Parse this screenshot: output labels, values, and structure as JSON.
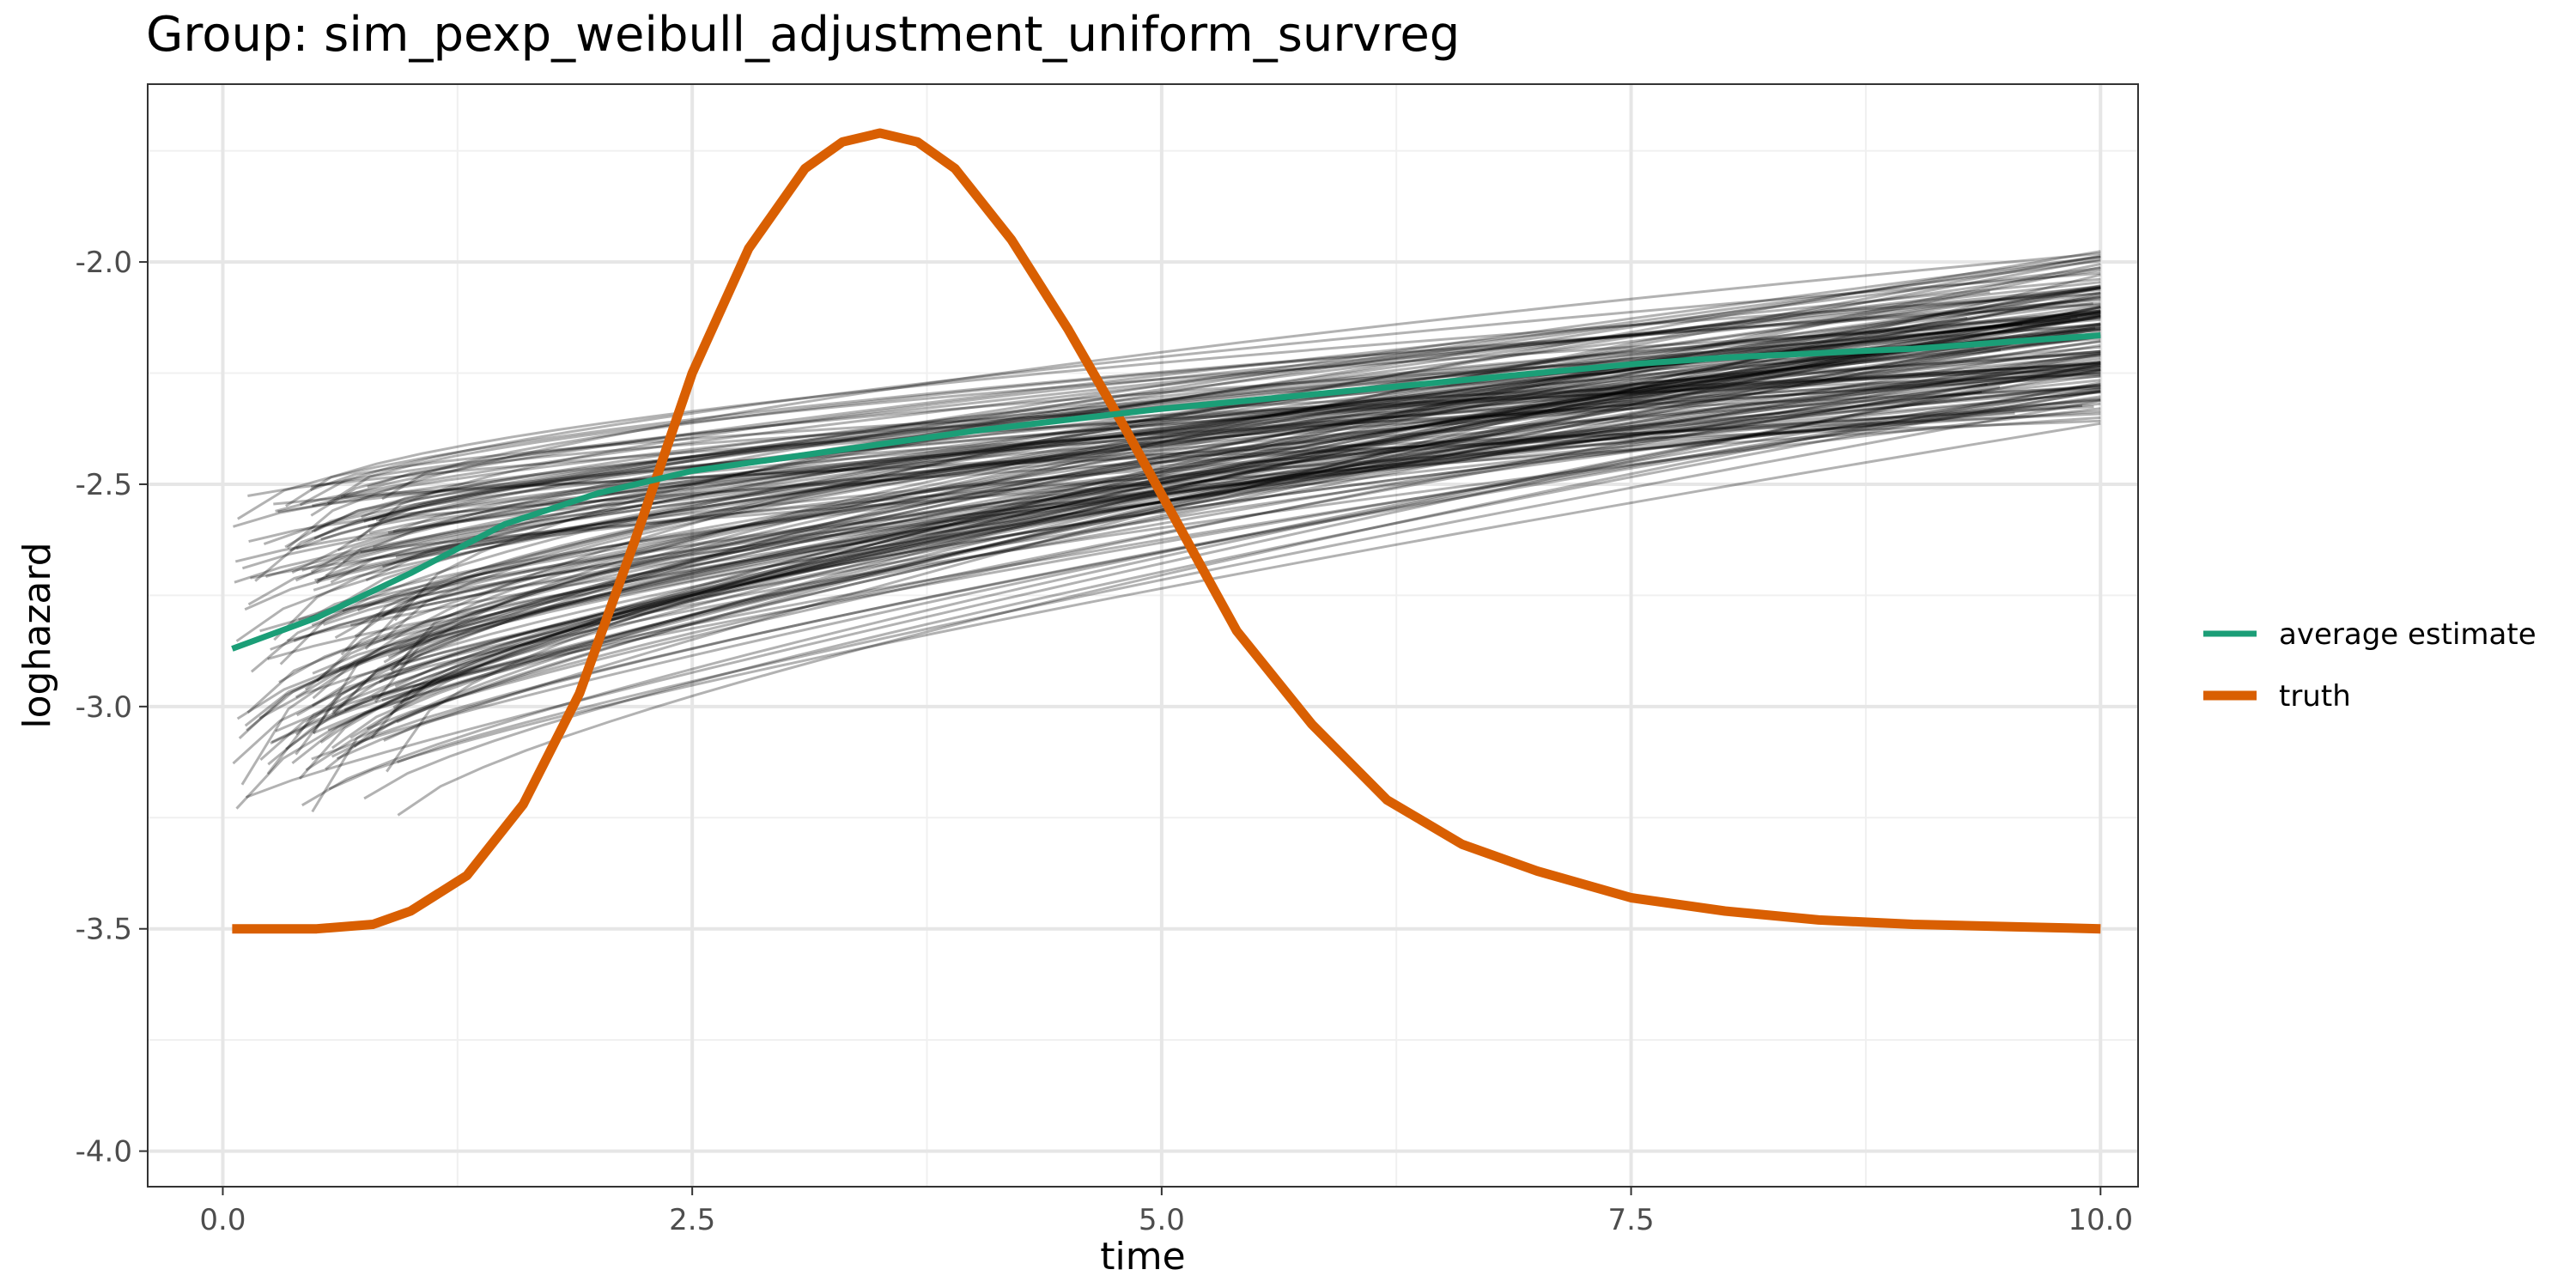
{
  "chart_data": {
    "type": "line",
    "title": "Group: sim_pexp_weibull_adjustment_uniform_survreg",
    "xlabel": "time",
    "ylabel": "loghazard",
    "xlim": [
      -0.4,
      10.2
    ],
    "ylim": [
      -4.08,
      -1.6
    ],
    "x_ticks": [
      0.0,
      2.5,
      5.0,
      7.5,
      10.0
    ],
    "x_tick_labels": [
      "0.0",
      "2.5",
      "5.0",
      "7.5",
      "10.0"
    ],
    "y_ticks": [
      -4.0,
      -3.5,
      -3.0,
      -2.5,
      -2.0
    ],
    "y_tick_labels": [
      "-4.0",
      "-3.5",
      "-3.0",
      "-2.5",
      "-2.0"
    ],
    "grid": true,
    "legend_position": "right",
    "series": [
      {
        "name": "average estimate",
        "color": "#1b9e77",
        "x": [
          0.05,
          0.5,
          1.0,
          1.5,
          2.0,
          2.5,
          3.0,
          3.5,
          4.0,
          4.5,
          5.0,
          5.5,
          6.0,
          6.5,
          7.0,
          7.5,
          8.0,
          8.5,
          9.0,
          9.5,
          10.0
        ],
        "y": [
          -2.87,
          -2.8,
          -2.7,
          -2.59,
          -2.52,
          -2.47,
          -2.44,
          -2.41,
          -2.38,
          -2.355,
          -2.33,
          -2.31,
          -2.29,
          -2.27,
          -2.25,
          -2.23,
          -2.215,
          -2.205,
          -2.195,
          -2.18,
          -2.165
        ]
      },
      {
        "name": "truth",
        "color": "#d95f02",
        "x": [
          0.05,
          0.5,
          0.8,
          1.0,
          1.3,
          1.6,
          1.9,
          2.2,
          2.5,
          2.8,
          3.1,
          3.3,
          3.5,
          3.7,
          3.9,
          4.2,
          4.5,
          4.8,
          5.1,
          5.4,
          5.8,
          6.2,
          6.6,
          7.0,
          7.5,
          8.0,
          8.5,
          9.0,
          9.5,
          10.0
        ],
        "y": [
          -3.5,
          -3.5,
          -3.49,
          -3.46,
          -3.38,
          -3.22,
          -2.97,
          -2.62,
          -2.25,
          -1.97,
          -1.79,
          -1.73,
          -1.71,
          -1.73,
          -1.79,
          -1.95,
          -2.15,
          -2.37,
          -2.6,
          -2.83,
          -3.04,
          -3.21,
          -3.31,
          -3.37,
          -3.43,
          -3.46,
          -3.48,
          -3.49,
          -3.495,
          -3.5
        ]
      }
    ],
    "replicate_curves": {
      "count": 160,
      "color": "#000000",
      "opacity": 0.3,
      "x_range": [
        0.05,
        10.0
      ],
      "y_start_range": [
        -3.25,
        -2.5
      ],
      "y_end_range": [
        -2.45,
        -1.88
      ]
    }
  }
}
